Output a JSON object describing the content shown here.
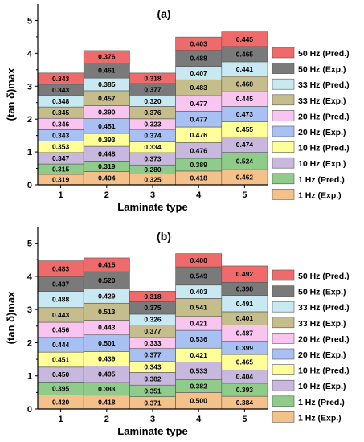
{
  "chart_data": [
    {
      "type": "bar",
      "stacked": true,
      "panel_label": "(a)",
      "xlabel": "Laminate type",
      "ylabel": "(tan δ)max",
      "categories": [
        "1",
        "2",
        "3",
        "4",
        "5"
      ],
      "ylim": [
        0,
        5.5
      ],
      "yticks": [
        "0",
        "1",
        "2",
        "3",
        "4",
        "5"
      ],
      "legend_placement": "right",
      "series": [
        {
          "name": "1 Hz (Exp.)",
          "color": "#f5c18a",
          "values": [
            0.319,
            0.404,
            0.325,
            0.418,
            0.462
          ]
        },
        {
          "name": "1 Hz (Pred.)",
          "color": "#8fcc8a",
          "values": [
            0.315,
            0.319,
            0.28,
            0.389,
            0.524
          ]
        },
        {
          "name": "10 Hz (Exp.)",
          "color": "#c9b8de",
          "values": [
            0.347,
            0.448,
            0.373,
            0.476,
            0.474
          ]
        },
        {
          "name": "10 Hz (Pred.)",
          "color": "#ffff99",
          "values": [
            0.353,
            0.393,
            0.334,
            0.476,
            0.455
          ]
        },
        {
          "name": "20 Hz (Exp.)",
          "color": "#a9c1f2",
          "values": [
            0.343,
            0.451,
            0.374,
            0.477,
            0.473
          ]
        },
        {
          "name": "20 Hz (Pred.)",
          "color": "#f8c4f0",
          "values": [
            0.346,
            0.39,
            0.323,
            0.477,
            0.445
          ]
        },
        {
          "name": "33 Hz (Exp.)",
          "color": "#c6bd8c",
          "values": [
            0.345,
            0.457,
            0.376,
            0.483,
            0.468
          ]
        },
        {
          "name": "33 Hz (Pred.)",
          "color": "#c8e9f1",
          "values": [
            0.348,
            0.385,
            0.32,
            0.407,
            0.441
          ]
        },
        {
          "name": "50 Hz (Exp.)",
          "color": "#7a7a7a",
          "values": [
            0.343,
            0.461,
            0.377,
            0.488,
            0.465
          ]
        },
        {
          "name": "50 Hz (Pred.)",
          "color": "#ef6b6b",
          "values": [
            0.343,
            0.376,
            0.318,
            0.403,
            0.445
          ]
        }
      ]
    },
    {
      "type": "bar",
      "stacked": true,
      "panel_label": "(b)",
      "xlabel": "Laminate type",
      "ylabel": "(tan δ)max",
      "categories": [
        "1",
        "2",
        "3",
        "4",
        "5"
      ],
      "ylim": [
        0,
        5.5
      ],
      "yticks": [
        "0",
        "1",
        "2",
        "3",
        "4",
        "5"
      ],
      "legend_placement": "right",
      "series": [
        {
          "name": "1 Hz (Exp.)",
          "color": "#f5c18a",
          "values": [
            0.42,
            0.418,
            0.371,
            0.5,
            0.384
          ]
        },
        {
          "name": "1 Hz (Pred.)",
          "color": "#8fcc8a",
          "values": [
            0.395,
            0.383,
            0.351,
            0.382,
            0.393
          ]
        },
        {
          "name": "10 Hz (Exp.)",
          "color": "#c9b8de",
          "values": [
            0.45,
            0.495,
            0.382,
            0.533,
            0.404
          ]
        },
        {
          "name": "10 Hz (Pred.)",
          "color": "#ffff99",
          "values": [
            0.451,
            0.439,
            0.343,
            0.421,
            0.465
          ]
        },
        {
          "name": "20 Hz (Exp.)",
          "color": "#a9c1f2",
          "values": [
            0.444,
            0.501,
            0.377,
            0.536,
            0.399
          ]
        },
        {
          "name": "20 Hz (Pred.)",
          "color": "#f8c4f0",
          "values": [
            0.456,
            0.443,
            0.333,
            0.421,
            0.487
          ]
        },
        {
          "name": "33 Hz (Exp.)",
          "color": "#c6bd8c",
          "values": [
            0.443,
            0.513,
            0.377,
            0.541,
            0.401
          ]
        },
        {
          "name": "33 Hz (Pred.)",
          "color": "#c8e9f1",
          "values": [
            0.488,
            0.429,
            0.326,
            0.403,
            0.491
          ]
        },
        {
          "name": "50 Hz (Exp.)",
          "color": "#7a7a7a",
          "values": [
            0.437,
            0.52,
            0.375,
            0.549,
            0.398
          ]
        },
        {
          "name": "50 Hz (Pred.)",
          "color": "#ef6b6b",
          "values": [
            0.483,
            0.415,
            0.318,
            0.4,
            0.492
          ]
        }
      ]
    }
  ]
}
